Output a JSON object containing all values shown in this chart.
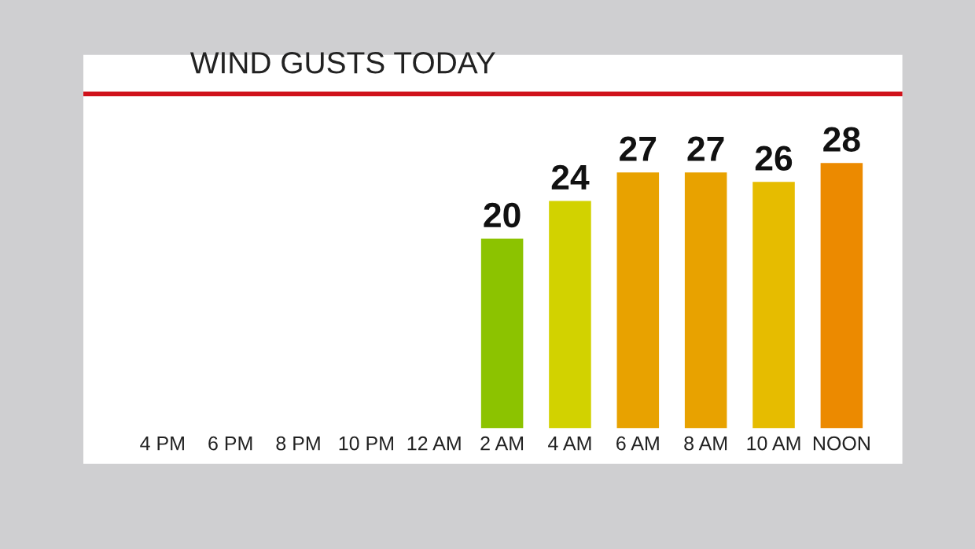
{
  "chart_data": {
    "type": "bar",
    "title": "WIND GUSTS TODAY",
    "categories": [
      "4 PM",
      "6 PM",
      "8 PM",
      "10 PM",
      "12 AM",
      "2 AM",
      "4 AM",
      "6 AM",
      "8 AM",
      "10 AM",
      "NOON"
    ],
    "values": [
      null,
      null,
      null,
      null,
      null,
      20,
      24,
      27,
      27,
      26,
      28
    ],
    "colors": [
      "#8cc300",
      "#8cc300",
      "#8cc300",
      "#8cc300",
      "#8cc300",
      "#8cc300",
      "#d2d200",
      "#e8a200",
      "#e8a200",
      "#e6bc00",
      "#ec8a00"
    ],
    "data_labels": true,
    "grid": false,
    "legend": false
  }
}
